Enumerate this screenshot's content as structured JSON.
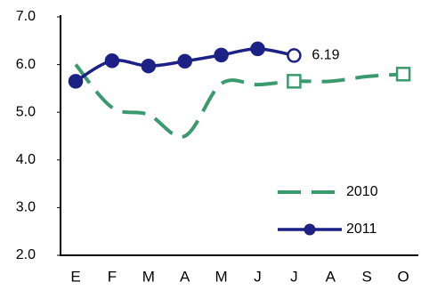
{
  "chart_data": {
    "type": "line",
    "categories": [
      "E",
      "F",
      "M",
      "A",
      "M",
      "J",
      "J",
      "A",
      "S",
      "O"
    ],
    "ylim": [
      2,
      7
    ],
    "yticks": [
      {
        "value": 2,
        "label": "2.0"
      },
      {
        "value": 3,
        "label": "3.0"
      },
      {
        "value": 4,
        "label": "4.0"
      },
      {
        "value": 5,
        "label": "5.0"
      },
      {
        "value": 6,
        "label": "6.0"
      },
      {
        "value": 7,
        "label": "7.0"
      }
    ],
    "grid": false,
    "legend": "lower right",
    "series": [
      {
        "name": "2010",
        "color": "#3a9a6e",
        "dash": true,
        "marker": "square",
        "marker_at": [
          6,
          9
        ],
        "values": [
          6.0,
          5.1,
          4.95,
          4.5,
          5.6,
          5.58,
          5.65,
          5.65,
          5.75,
          5.8
        ]
      },
      {
        "name": "2011",
        "color": "#1c2186",
        "dash": false,
        "marker": "circle",
        "open_last": true,
        "label_last": true,
        "values": [
          5.65,
          6.08,
          5.97,
          6.07,
          6.2,
          6.33,
          6.19,
          null,
          null,
          null
        ]
      }
    ]
  }
}
